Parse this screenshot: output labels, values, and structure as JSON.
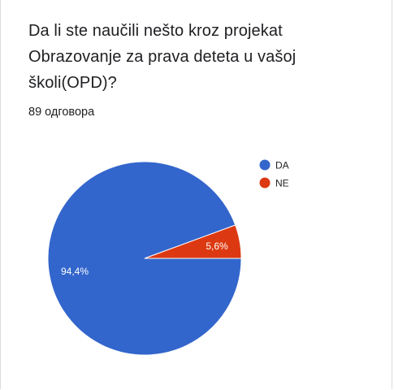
{
  "question": {
    "line1": "Da li ste naučili nešto kroz projekat",
    "line2": "Obrazovanje za prava deteta u vašoj",
    "line3": "školi(OPD)?"
  },
  "response_count": "89 одговора",
  "colors": {
    "DA": "#3366cc",
    "NE": "#dc3912"
  },
  "chart_data": {
    "type": "pie",
    "title": "Da li ste naučili nešto kroz projekat Obrazovanje za prava deteta u vašoj školi(OPD)?",
    "labels": [
      "DA",
      "NE"
    ],
    "values": [
      94.4,
      5.6
    ],
    "value_labels": [
      "94,4%",
      "5,6%"
    ],
    "legend_position": "right"
  }
}
